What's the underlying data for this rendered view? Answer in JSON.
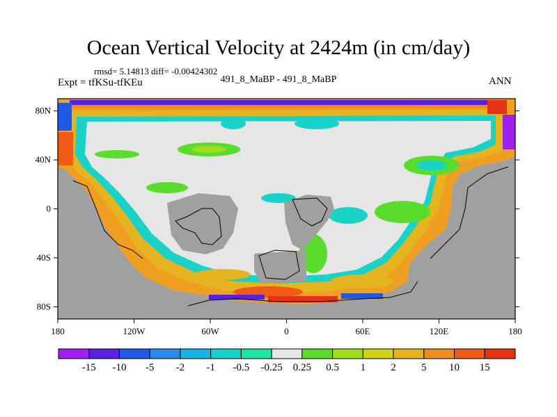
{
  "title": "Ocean Vertical Velocity at 2424m (in cm/day)",
  "stats": "rmsd= 5.14813 diff= -0.00424302",
  "expt": "Expt = tfKSu-tfKEu",
  "case": "491_8_MaBP - 491_8_MaBP",
  "season": "ANN",
  "map": {
    "lon_range": [
      -180,
      180
    ],
    "lat_range": [
      -90,
      90
    ],
    "lat_ticks": [
      "80N",
      "40N",
      "0",
      "40S",
      "80S"
    ],
    "lon_ticks": [
      "180",
      "120W",
      "60W",
      "0",
      "60E",
      "120E",
      "180"
    ],
    "land_color": "#a0a0a0",
    "zero_band_color": "#e6e6e6"
  },
  "colorbar": {
    "labels": [
      "-15",
      "-10",
      "-5",
      "-2",
      "-1",
      "-0.5",
      "-0.25",
      "0.25",
      "0.5",
      "1",
      "2",
      "5",
      "10",
      "15"
    ],
    "colors": [
      "#a020f0",
      "#5a20e0",
      "#1e5ae6",
      "#2a8ae6",
      "#19b4e6",
      "#19d2c8",
      "#1ee6a0",
      "#e6e6e6",
      "#5adc2d",
      "#a0dc1e",
      "#d2d21e",
      "#e6b41e",
      "#f08c1e",
      "#f05a14",
      "#e63214"
    ]
  }
}
